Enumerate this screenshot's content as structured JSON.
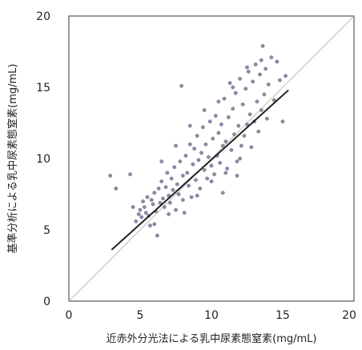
{
  "chart_data": {
    "type": "scatter",
    "xlabel": "近赤外分光法による乳中尿素態窒素(mg/mL)",
    "ylabel": "基準分析による乳中尿素態窒素(mg/mL)",
    "xlim": [
      0,
      20
    ],
    "ylim": [
      0,
      20
    ],
    "x_ticks": [
      "0",
      "5",
      "10",
      "15",
      "20"
    ],
    "y_ticks": [
      "0",
      "5",
      "10",
      "15",
      "20"
    ],
    "grid": false,
    "colors": {
      "points": "#8a8fa8",
      "point_stroke": "#5a5e78",
      "regression": "#222222",
      "identity": "#bbbbbb",
      "frame": "#333333"
    },
    "lines": [
      {
        "kind": "identity",
        "x": [
          0,
          20
        ],
        "y": [
          0,
          20
        ]
      },
      {
        "kind": "regression",
        "x": [
          3.0,
          15.4
        ],
        "y": [
          3.6,
          14.8
        ]
      }
    ],
    "points": [
      [
        2.9,
        8.8
      ],
      [
        3.3,
        7.9
      ],
      [
        4.3,
        8.9
      ],
      [
        4.5,
        6.6
      ],
      [
        4.7,
        5.6
      ],
      [
        4.9,
        6.1
      ],
      [
        5.0,
        6.4
      ],
      [
        5.1,
        5.9
      ],
      [
        5.2,
        7.0
      ],
      [
        5.3,
        6.6
      ],
      [
        5.4,
        6.2
      ],
      [
        5.5,
        7.3
      ],
      [
        5.6,
        6.0
      ],
      [
        5.7,
        5.3
      ],
      [
        5.8,
        7.1
      ],
      [
        5.9,
        6.8
      ],
      [
        6.0,
        7.6
      ],
      [
        6.1,
        6.3
      ],
      [
        6.2,
        4.6
      ],
      [
        6.3,
        7.9
      ],
      [
        6.4,
        6.9
      ],
      [
        6.5,
        8.4
      ],
      [
        6.6,
        7.2
      ],
      [
        6.7,
        6.6
      ],
      [
        6.8,
        8.0
      ],
      [
        6.9,
        9.0
      ],
      [
        7.0,
        7.4
      ],
      [
        7.1,
        6.9
      ],
      [
        7.2,
        8.6
      ],
      [
        7.3,
        7.8
      ],
      [
        7.4,
        9.4
      ],
      [
        7.5,
        6.4
      ],
      [
        7.6,
        8.2
      ],
      [
        7.7,
        7.5
      ],
      [
        7.8,
        9.8
      ],
      [
        7.9,
        15.1
      ],
      [
        8.0,
        8.8
      ],
      [
        8.1,
        6.2
      ],
      [
        8.2,
        10.2
      ],
      [
        8.3,
        9.0
      ],
      [
        8.4,
        8.1
      ],
      [
        8.5,
        11.0
      ],
      [
        8.6,
        7.3
      ],
      [
        8.7,
        9.6
      ],
      [
        8.8,
        10.7
      ],
      [
        8.9,
        8.5
      ],
      [
        9.0,
        11.6
      ],
      [
        9.1,
        9.9
      ],
      [
        9.2,
        7.9
      ],
      [
        9.3,
        10.4
      ],
      [
        9.4,
        12.2
      ],
      [
        9.5,
        9.2
      ],
      [
        9.6,
        11.0
      ],
      [
        9.7,
        8.6
      ],
      [
        9.8,
        10.1
      ],
      [
        9.9,
        12.6
      ],
      [
        10.0,
        9.5
      ],
      [
        10.1,
        11.4
      ],
      [
        10.2,
        8.9
      ],
      [
        10.3,
        13.0
      ],
      [
        10.4,
        10.2
      ],
      [
        10.5,
        11.8
      ],
      [
        10.6,
        9.7
      ],
      [
        10.7,
        12.4
      ],
      [
        10.8,
        10.9
      ],
      [
        10.9,
        14.2
      ],
      [
        11.0,
        11.2
      ],
      [
        11.1,
        9.3
      ],
      [
        11.2,
        12.9
      ],
      [
        11.3,
        15.3
      ],
      [
        11.4,
        10.6
      ],
      [
        11.5,
        13.5
      ],
      [
        11.6,
        11.7
      ],
      [
        11.7,
        14.6
      ],
      [
        11.8,
        9.8
      ],
      [
        11.9,
        12.3
      ],
      [
        12.0,
        15.6
      ],
      [
        12.1,
        10.9
      ],
      [
        12.2,
        13.8
      ],
      [
        12.3,
        11.6
      ],
      [
        12.4,
        14.9
      ],
      [
        12.5,
        12.4
      ],
      [
        12.6,
        16.1
      ],
      [
        12.7,
        13.1
      ],
      [
        12.8,
        10.8
      ],
      [
        12.9,
        15.4
      ],
      [
        13.0,
        12.6
      ],
      [
        13.1,
        16.6
      ],
      [
        13.2,
        14.0
      ],
      [
        13.3,
        11.9
      ],
      [
        13.4,
        15.9
      ],
      [
        13.5,
        13.4
      ],
      [
        13.6,
        17.9
      ],
      [
        13.7,
        14.5
      ],
      [
        13.8,
        16.3
      ],
      [
        13.9,
        12.8
      ],
      [
        14.0,
        15.2
      ],
      [
        14.2,
        17.1
      ],
      [
        14.4,
        14.1
      ],
      [
        14.6,
        16.8
      ],
      [
        14.8,
        15.5
      ],
      [
        15.0,
        12.6
      ],
      [
        15.2,
        15.8
      ],
      [
        9.0,
        7.4
      ],
      [
        10.0,
        8.4
      ],
      [
        11.0,
        9.0
      ],
      [
        8.0,
        7.1
      ],
      [
        7.0,
        6.1
      ],
      [
        12.0,
        10.0
      ],
      [
        6.0,
        5.4
      ],
      [
        9.5,
        13.4
      ],
      [
        10.5,
        14.0
      ],
      [
        8.5,
        12.3
      ],
      [
        11.5,
        15.0
      ],
      [
        12.5,
        16.4
      ],
      [
        13.5,
        16.9
      ],
      [
        7.5,
        10.9
      ],
      [
        6.5,
        9.8
      ],
      [
        10.8,
        7.6
      ],
      [
        11.8,
        8.8
      ]
    ]
  }
}
